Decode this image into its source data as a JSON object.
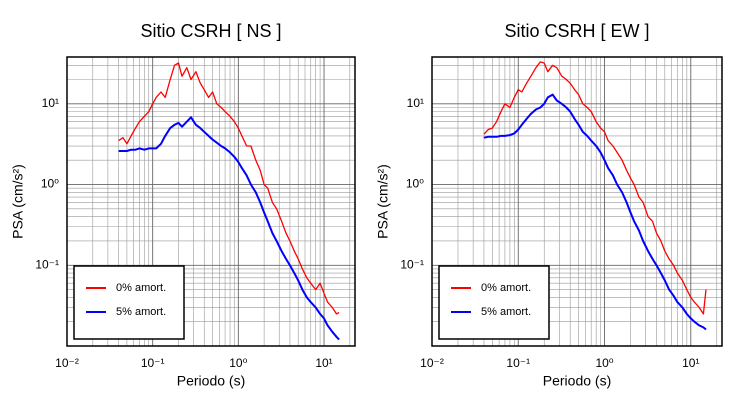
{
  "chart_data": [
    {
      "type": "line",
      "title": "Sitio CSRH [ NS ]",
      "x_label": "Periodo (s)",
      "y_label": "PSA (cm/s²)",
      "x": [
        0.04,
        0.045,
        0.05,
        0.056,
        0.063,
        0.07,
        0.08,
        0.09,
        0.1,
        0.11,
        0.125,
        0.14,
        0.16,
        0.18,
        0.2,
        0.22,
        0.25,
        0.28,
        0.32,
        0.36,
        0.4,
        0.45,
        0.5,
        0.56,
        0.63,
        0.7,
        0.8,
        0.9,
        1.0,
        1.1,
        1.25,
        1.4,
        1.6,
        1.8,
        2.0,
        2.2,
        2.5,
        2.8,
        3.2,
        3.6,
        4.0,
        4.5,
        5.0,
        5.6,
        6.3,
        7.0,
        8.0,
        9.0,
        10,
        11,
        12.5,
        14,
        15
      ],
      "series": [
        {
          "name": "0% amort.",
          "color": "#ff0000",
          "values": [
            3.5,
            3.8,
            3.2,
            4,
            5,
            6,
            7,
            8,
            10,
            12,
            14,
            12,
            20,
            30,
            32,
            22,
            28,
            20,
            25,
            18,
            15,
            12,
            14,
            10,
            9,
            8,
            7,
            6,
            5,
            4,
            3,
            3,
            2,
            1.5,
            1.0,
            0.9,
            0.6,
            0.5,
            0.35,
            0.25,
            0.2,
            0.15,
            0.12,
            0.09,
            0.07,
            0.06,
            0.05,
            0.06,
            0.045,
            0.035,
            0.03,
            0.025,
            0.026
          ]
        },
        {
          "name": "5% amort.",
          "color": "#0000ff",
          "values": [
            2.6,
            2.6,
            2.6,
            2.7,
            2.7,
            2.8,
            2.7,
            2.8,
            2.8,
            2.8,
            3.2,
            4,
            5,
            5.5,
            5.8,
            5.2,
            6,
            6.8,
            5.5,
            5,
            4.5,
            4,
            3.6,
            3.3,
            3,
            2.8,
            2.5,
            2.2,
            1.9,
            1.6,
            1.3,
            1.0,
            0.8,
            0.6,
            0.45,
            0.35,
            0.25,
            0.2,
            0.15,
            0.12,
            0.1,
            0.08,
            0.065,
            0.05,
            0.04,
            0.035,
            0.03,
            0.025,
            0.022,
            0.018,
            0.015,
            0.013,
            0.012
          ]
        }
      ],
      "xlim": [
        0.01,
        23
      ],
      "ylim": [
        0.01,
        38
      ],
      "log_x": true,
      "log_y": true,
      "xticks": [
        {
          "value": 0.01,
          "label": "10⁻²"
        },
        {
          "value": 0.1,
          "label": "10⁻¹"
        },
        {
          "value": 1,
          "label": "10⁰"
        },
        {
          "value": 10,
          "label": "10¹"
        }
      ],
      "yticks": [
        {
          "value": 0.1,
          "label": "10⁻¹"
        },
        {
          "value": 1,
          "label": "10⁰"
        },
        {
          "value": 10,
          "label": "10¹"
        }
      ],
      "grid": true,
      "minor_grid": true,
      "legend": "lower left"
    },
    {
      "type": "line",
      "title": "Sitio CSRH [ EW ]",
      "x_label": "Periodo (s)",
      "y_label": "PSA (cm/s²)",
      "x": [
        0.04,
        0.045,
        0.05,
        0.056,
        0.063,
        0.07,
        0.08,
        0.09,
        0.1,
        0.11,
        0.125,
        0.14,
        0.16,
        0.18,
        0.2,
        0.22,
        0.25,
        0.28,
        0.32,
        0.36,
        0.4,
        0.45,
        0.5,
        0.56,
        0.63,
        0.7,
        0.8,
        0.9,
        1.0,
        1.1,
        1.25,
        1.4,
        1.6,
        1.8,
        2.0,
        2.2,
        2.5,
        2.8,
        3.2,
        3.6,
        4.0,
        4.5,
        5.0,
        5.6,
        6.3,
        7.0,
        8.0,
        9.0,
        10,
        11,
        12.5,
        14,
        15
      ],
      "series": [
        {
          "name": "0% amort.",
          "color": "#ff0000",
          "values": [
            4.2,
            4.8,
            5,
            6,
            8,
            10,
            9,
            12,
            15,
            14,
            18,
            22,
            28,
            33,
            32,
            25,
            30,
            28,
            22,
            20,
            18,
            15,
            13,
            10,
            9,
            8,
            6,
            5,
            4.5,
            3.5,
            3,
            2.5,
            2,
            1.5,
            1.2,
            1,
            0.7,
            0.6,
            0.4,
            0.35,
            0.25,
            0.2,
            0.15,
            0.12,
            0.1,
            0.08,
            0.065,
            0.05,
            0.04,
            0.035,
            0.03,
            0.025,
            0.05
          ]
        },
        {
          "name": "5% amort.",
          "color": "#0000ff",
          "values": [
            3.8,
            3.9,
            3.9,
            3.9,
            4,
            4,
            4.1,
            4.3,
            4.8,
            5.5,
            6.5,
            7.5,
            8.5,
            9,
            10,
            12,
            13,
            11,
            10,
            9,
            8,
            6.5,
            5.5,
            4.5,
            4,
            3.5,
            3,
            2.5,
            2,
            1.6,
            1.3,
            1,
            0.8,
            0.6,
            0.45,
            0.35,
            0.27,
            0.2,
            0.15,
            0.12,
            0.1,
            0.08,
            0.065,
            0.05,
            0.042,
            0.035,
            0.03,
            0.025,
            0.022,
            0.02,
            0.018,
            0.017,
            0.016
          ]
        }
      ],
      "xlim": [
        0.01,
        23
      ],
      "ylim": [
        0.01,
        38
      ],
      "log_x": true,
      "log_y": true,
      "xticks": [
        {
          "value": 0.01,
          "label": "10⁻²"
        },
        {
          "value": 0.1,
          "label": "10⁻¹"
        },
        {
          "value": 1,
          "label": "10⁰"
        },
        {
          "value": 10,
          "label": "10¹"
        }
      ],
      "yticks": [
        {
          "value": 0.1,
          "label": "10⁻¹"
        },
        {
          "value": 1,
          "label": "10⁰"
        },
        {
          "value": 10,
          "label": "10¹"
        }
      ],
      "grid": true,
      "minor_grid": true,
      "legend": "lower left"
    }
  ]
}
